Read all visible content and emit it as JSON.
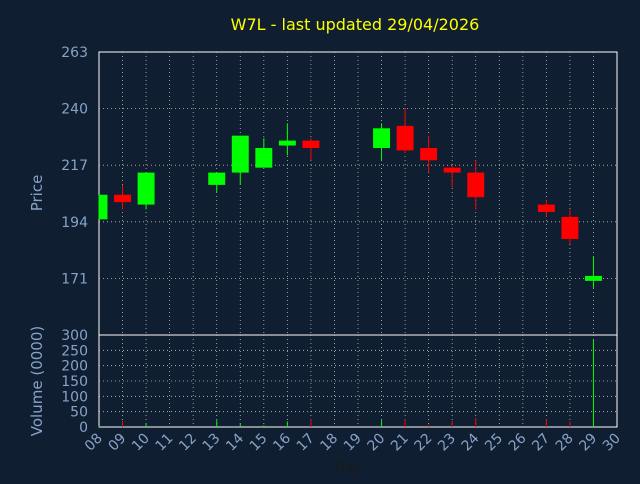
{
  "title": "W7L - last updated 29/04/2026",
  "colors": {
    "background": "#0f1e30",
    "title": "#ffff00",
    "axis_text": "#87a3c8",
    "grid": "#c0c0c0",
    "up": "#00ff00",
    "down": "#ff0000",
    "frame": "#ffffff"
  },
  "chart_data": [
    {
      "type": "candlestick",
      "title": "W7L - last updated 29/04/2026",
      "ylabel": "Price",
      "ylim": [
        148,
        263
      ],
      "yticks": [
        171,
        194,
        217,
        240,
        263
      ],
      "grid": true,
      "x_ticklabels": [
        "08",
        "09",
        "10",
        "11",
        "12",
        "13",
        "14",
        "15",
        "16",
        "17",
        "18",
        "19",
        "20",
        "21",
        "22",
        "23",
        "24",
        "25",
        "26",
        "27",
        "28",
        "29",
        "30"
      ],
      "x_range": [
        8,
        30
      ],
      "candles": [
        {
          "day": 8,
          "open": 195,
          "close": 205,
          "high": 205,
          "low": 195
        },
        {
          "day": 9,
          "open": 205,
          "close": 202,
          "high": 209,
          "low": 199
        },
        {
          "day": 10,
          "open": 201,
          "close": 214,
          "high": 214,
          "low": 199
        },
        {
          "day": 13,
          "open": 209,
          "close": 214,
          "high": 214,
          "low": 206
        },
        {
          "day": 14,
          "open": 214,
          "close": 229,
          "high": 229,
          "low": 209
        },
        {
          "day": 15,
          "open": 216,
          "close": 224,
          "high": 228,
          "low": 216
        },
        {
          "day": 16,
          "open": 225,
          "close": 227,
          "high": 234,
          "low": 221
        },
        {
          "day": 17,
          "open": 227,
          "close": 224,
          "high": 228,
          "low": 219
        },
        {
          "day": 20,
          "open": 224,
          "close": 232,
          "high": 234,
          "low": 219
        },
        {
          "day": 21,
          "open": 233,
          "close": 223,
          "high": 240,
          "low": 222
        },
        {
          "day": 22,
          "open": 224,
          "close": 219,
          "high": 229,
          "low": 214
        },
        {
          "day": 23,
          "open": 216,
          "close": 214,
          "high": 217,
          "low": 208
        },
        {
          "day": 24,
          "open": 214,
          "close": 204,
          "high": 219,
          "low": 199
        },
        {
          "day": 27,
          "open": 201,
          "close": 198,
          "high": 203,
          "low": 196
        },
        {
          "day": 28,
          "open": 196,
          "close": 187,
          "high": 199,
          "low": 185
        },
        {
          "day": 29,
          "open": 170,
          "close": 172,
          "high": 180,
          "low": 167
        }
      ]
    },
    {
      "type": "bar",
      "ylabel": "Volume (0000)",
      "xlabel": "Day",
      "ylim": [
        0,
        300
      ],
      "yticks": [
        0,
        50,
        100,
        150,
        200,
        250,
        300
      ],
      "grid": true,
      "x_ticklabels": [
        "08",
        "09",
        "10",
        "11",
        "12",
        "13",
        "14",
        "15",
        "16",
        "17",
        "18",
        "19",
        "20",
        "21",
        "22",
        "23",
        "24",
        "25",
        "26",
        "27",
        "28",
        "29",
        "30"
      ],
      "x_range": [
        8,
        30
      ],
      "bars": [
        {
          "day": 8,
          "value": 3,
          "direction": "up"
        },
        {
          "day": 9,
          "value": 20,
          "direction": "down"
        },
        {
          "day": 10,
          "value": 10,
          "direction": "up"
        },
        {
          "day": 13,
          "value": 22,
          "direction": "up"
        },
        {
          "day": 14,
          "value": 12,
          "direction": "up"
        },
        {
          "day": 15,
          "value": 5,
          "direction": "up"
        },
        {
          "day": 16,
          "value": 18,
          "direction": "up"
        },
        {
          "day": 17,
          "value": 25,
          "direction": "down"
        },
        {
          "day": 20,
          "value": 22,
          "direction": "up"
        },
        {
          "day": 21,
          "value": 25,
          "direction": "down"
        },
        {
          "day": 22,
          "value": 8,
          "direction": "down"
        },
        {
          "day": 23,
          "value": 20,
          "direction": "down"
        },
        {
          "day": 24,
          "value": 30,
          "direction": "down"
        },
        {
          "day": 27,
          "value": 25,
          "direction": "down"
        },
        {
          "day": 28,
          "value": 18,
          "direction": "down"
        },
        {
          "day": 29,
          "value": 285,
          "direction": "up"
        }
      ]
    }
  ]
}
